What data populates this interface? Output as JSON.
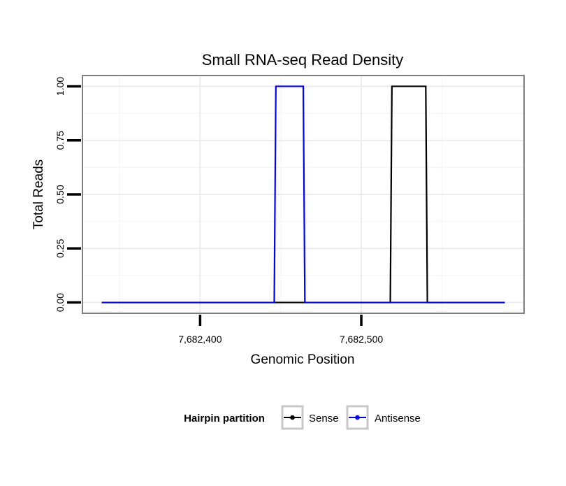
{
  "chart_data": {
    "type": "line",
    "title": "Small RNA-seq Read Density",
    "xlabel": "Genomic Position",
    "ylabel": "Total Reads",
    "xlim": [
      7682327,
      7682601
    ],
    "ylim": [
      -0.05,
      1.05
    ],
    "x_ticks": [
      7682400,
      7682500
    ],
    "x_tick_labels": [
      "7,682,400",
      "7,682,500"
    ],
    "y_ticks": [
      0,
      0.25,
      0.5,
      0.75,
      1.0
    ],
    "y_tick_labels": [
      "0.00",
      "0.25",
      "0.50",
      "0.75",
      "1.00"
    ],
    "grid": true,
    "legend": {
      "title": "Hairpin partition",
      "position": "bottom"
    },
    "series": [
      {
        "name": "Sense",
        "color": "#000000",
        "x": [
          7682339,
          7682518,
          7682519,
          7682540,
          7682541,
          7682589
        ],
        "values": [
          0,
          0,
          1,
          1,
          0,
          0
        ]
      },
      {
        "name": "Antisense",
        "color": "#0000ff",
        "x": [
          7682339,
          7682446,
          7682447,
          7682464,
          7682465,
          7682518,
          7682541,
          7682589
        ],
        "values": [
          0,
          0,
          1,
          1,
          0,
          0,
          0,
          0
        ]
      }
    ]
  }
}
